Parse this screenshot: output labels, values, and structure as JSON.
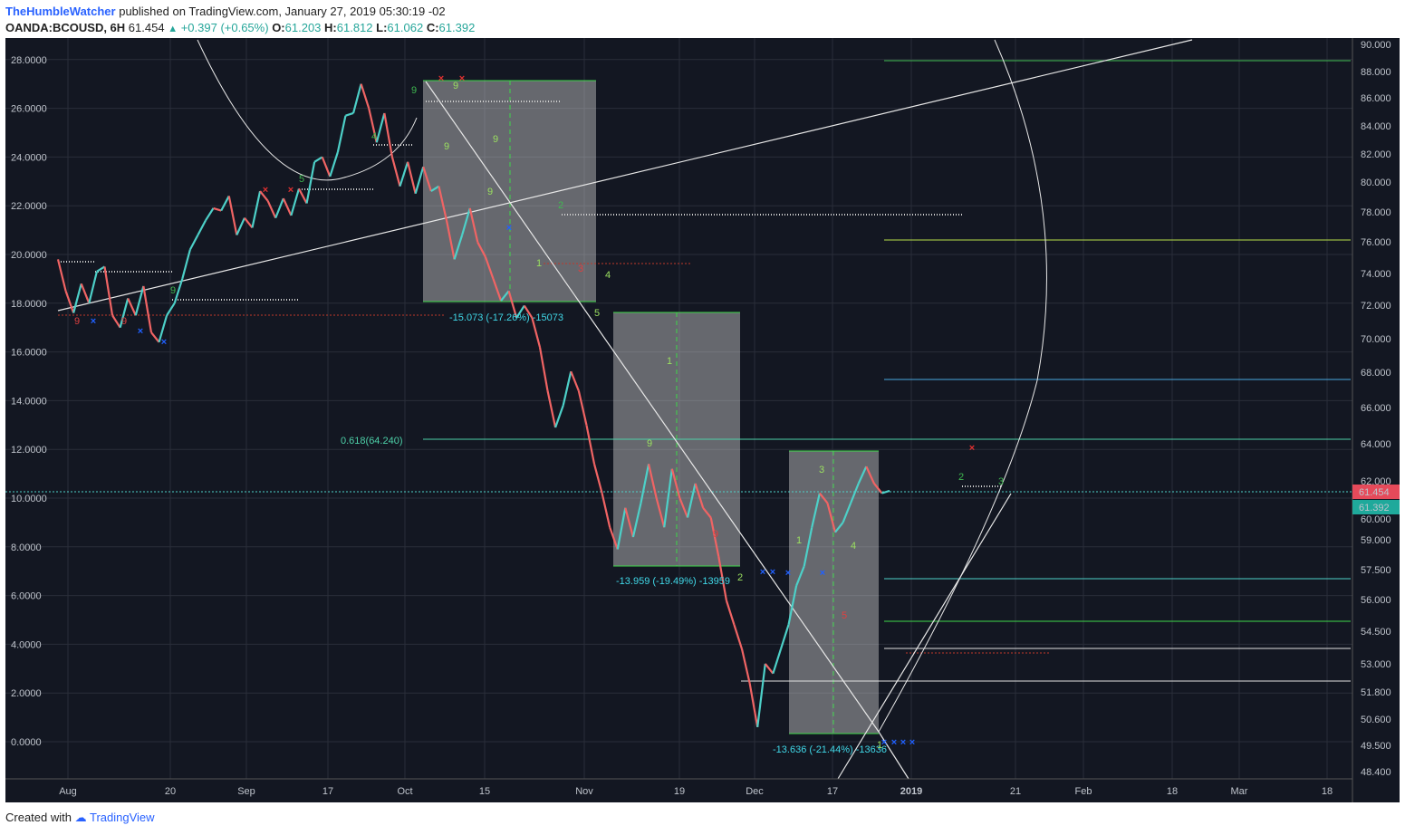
{
  "header": {
    "author": "TheHumbleWatcher",
    "published_text": "published on TradingView.com, January 27, 2019 05:30:19 -02",
    "symbol": "OANDA:BCOUSD, 6H",
    "last": "61.454",
    "change": "+0.397 (+0.65%)",
    "open_label": "O:",
    "open": "61.203",
    "high_label": "H:",
    "high": "61.812",
    "low_label": "L:",
    "low": "61.062",
    "close_label": "C:",
    "close": "61.392"
  },
  "footer": {
    "created_with": "Created with",
    "brand": "TradingView"
  },
  "colors": {
    "background": "#131722",
    "up": "#4dd0c8",
    "down": "#f06464",
    "grid": "#2a2e39",
    "box": "#d8d8d8"
  },
  "chart_data": {
    "type": "line",
    "left_axis": {
      "ticks": [
        28,
        26,
        24,
        22,
        20,
        18,
        16,
        14,
        12,
        10,
        8,
        6,
        4,
        2,
        0
      ],
      "labels": [
        "28.0000",
        "26.0000",
        "24.0000",
        "22.0000",
        "20.0000",
        "18.0000",
        "16.0000",
        "14.0000",
        "12.0000",
        "10.0000",
        "8.0000",
        "6.0000",
        "4.0000",
        "2.0000",
        "0.0000"
      ],
      "range": [
        -1.5,
        29
      ]
    },
    "right_axis": {
      "labels": [
        "90.000",
        "88.000",
        "86.000",
        "84.000",
        "82.000",
        "80.000",
        "78.000",
        "76.000",
        "74.000",
        "72.000",
        "70.000",
        "68.000",
        "66.000",
        "64.000",
        "62.000",
        "60.000",
        "59.000",
        "57.500",
        "56.000",
        "54.500",
        "53.000",
        "51.800",
        "50.600",
        "49.500",
        "48.400"
      ],
      "scale": "log"
    },
    "x_axis": {
      "labels": [
        "Aug",
        "20",
        "Sep",
        "17",
        "Oct",
        "15",
        "Nov",
        "19",
        "Dec",
        "17",
        "2019",
        "21",
        "Feb",
        "18",
        "Mar",
        "18"
      ],
      "bold": [
        "2019"
      ]
    },
    "price": [
      [
        0,
        19.8
      ],
      [
        3,
        18.5
      ],
      [
        6,
        17.6
      ],
      [
        9,
        18.8
      ],
      [
        12,
        18.0
      ],
      [
        15,
        19.3
      ],
      [
        18,
        19.5
      ],
      [
        21,
        17.5
      ],
      [
        24,
        17.0
      ],
      [
        27,
        18.2
      ],
      [
        30,
        17.5
      ],
      [
        33,
        18.7
      ],
      [
        36,
        16.8
      ],
      [
        39,
        16.4
      ],
      [
        42,
        17.5
      ],
      [
        45,
        18.0
      ],
      [
        48,
        19.0
      ],
      [
        51,
        20.2
      ],
      [
        54,
        20.8
      ],
      [
        57,
        21.4
      ],
      [
        60,
        21.9
      ],
      [
        63,
        21.8
      ],
      [
        66,
        22.4
      ],
      [
        69,
        20.8
      ],
      [
        72,
        21.5
      ],
      [
        75,
        21.1
      ],
      [
        78,
        22.6
      ],
      [
        81,
        22.2
      ],
      [
        84,
        21.5
      ],
      [
        87,
        22.3
      ],
      [
        90,
        21.6
      ],
      [
        93,
        22.7
      ],
      [
        96,
        22.1
      ],
      [
        99,
        23.8
      ],
      [
        102,
        24.0
      ],
      [
        105,
        23.2
      ],
      [
        108,
        24.2
      ],
      [
        111,
        25.7
      ],
      [
        114,
        25.8
      ],
      [
        117,
        27.0
      ],
      [
        120,
        26.0
      ],
      [
        123,
        24.6
      ],
      [
        126,
        25.8
      ],
      [
        129,
        24.0
      ],
      [
        132,
        22.8
      ],
      [
        135,
        23.8
      ],
      [
        138,
        22.5
      ],
      [
        141,
        23.6
      ],
      [
        144,
        22.6
      ],
      [
        147,
        22.8
      ],
      [
        150,
        21.4
      ],
      [
        153,
        19.8
      ],
      [
        156,
        20.8
      ],
      [
        159,
        21.9
      ],
      [
        162,
        20.5
      ],
      [
        165,
        19.9
      ],
      [
        168,
        19.0
      ],
      [
        171,
        18.1
      ],
      [
        174,
        18.5
      ],
      [
        177,
        17.4
      ],
      [
        180,
        17.9
      ],
      [
        183,
        17.4
      ],
      [
        186,
        16.2
      ],
      [
        189,
        14.4
      ],
      [
        192,
        12.9
      ],
      [
        195,
        13.8
      ],
      [
        198,
        15.2
      ],
      [
        201,
        14.4
      ],
      [
        204,
        13.0
      ],
      [
        207,
        11.4
      ],
      [
        210,
        10.2
      ],
      [
        213,
        8.8
      ],
      [
        216,
        7.9
      ],
      [
        219,
        9.6
      ],
      [
        222,
        8.4
      ],
      [
        225,
        9.8
      ],
      [
        228,
        11.4
      ],
      [
        231,
        10.0
      ],
      [
        234,
        8.8
      ],
      [
        237,
        11.2
      ],
      [
        240,
        10.0
      ],
      [
        243,
        9.2
      ],
      [
        246,
        10.6
      ],
      [
        249,
        9.6
      ],
      [
        252,
        9.2
      ],
      [
        255,
        7.6
      ],
      [
        258,
        5.8
      ],
      [
        261,
        4.8
      ],
      [
        264,
        3.8
      ],
      [
        267,
        2.4
      ],
      [
        270,
        0.6
      ],
      [
        273,
        3.2
      ],
      [
        276,
        2.8
      ],
      [
        279,
        3.8
      ],
      [
        282,
        4.8
      ],
      [
        285,
        6.4
      ],
      [
        288,
        7.2
      ],
      [
        291,
        8.8
      ],
      [
        294,
        10.2
      ],
      [
        297,
        9.8
      ],
      [
        300,
        8.6
      ],
      [
        303,
        9.0
      ],
      [
        306,
        9.8
      ],
      [
        309,
        10.6
      ],
      [
        312,
        11.3
      ],
      [
        315,
        10.6
      ],
      [
        318,
        10.2
      ],
      [
        321,
        10.3
      ]
    ],
    "fib_label": "0.618(64.240)",
    "measure_labels": [
      "-15.073 (-17.26%) -15073",
      "-13.959 (-19.49%) -13959",
      "-13.636 (-21.44%) -13636"
    ],
    "price_badges": [
      "61.454",
      "61.392"
    ],
    "count_labels": [
      "9",
      "9",
      "9",
      "9",
      "9",
      "9",
      "1",
      "2",
      "3",
      "4",
      "5",
      "9",
      "1",
      "2",
      "9",
      "1",
      "3",
      "4",
      "5",
      "1",
      "2",
      "3",
      "4",
      "5",
      "9",
      "9"
    ]
  }
}
